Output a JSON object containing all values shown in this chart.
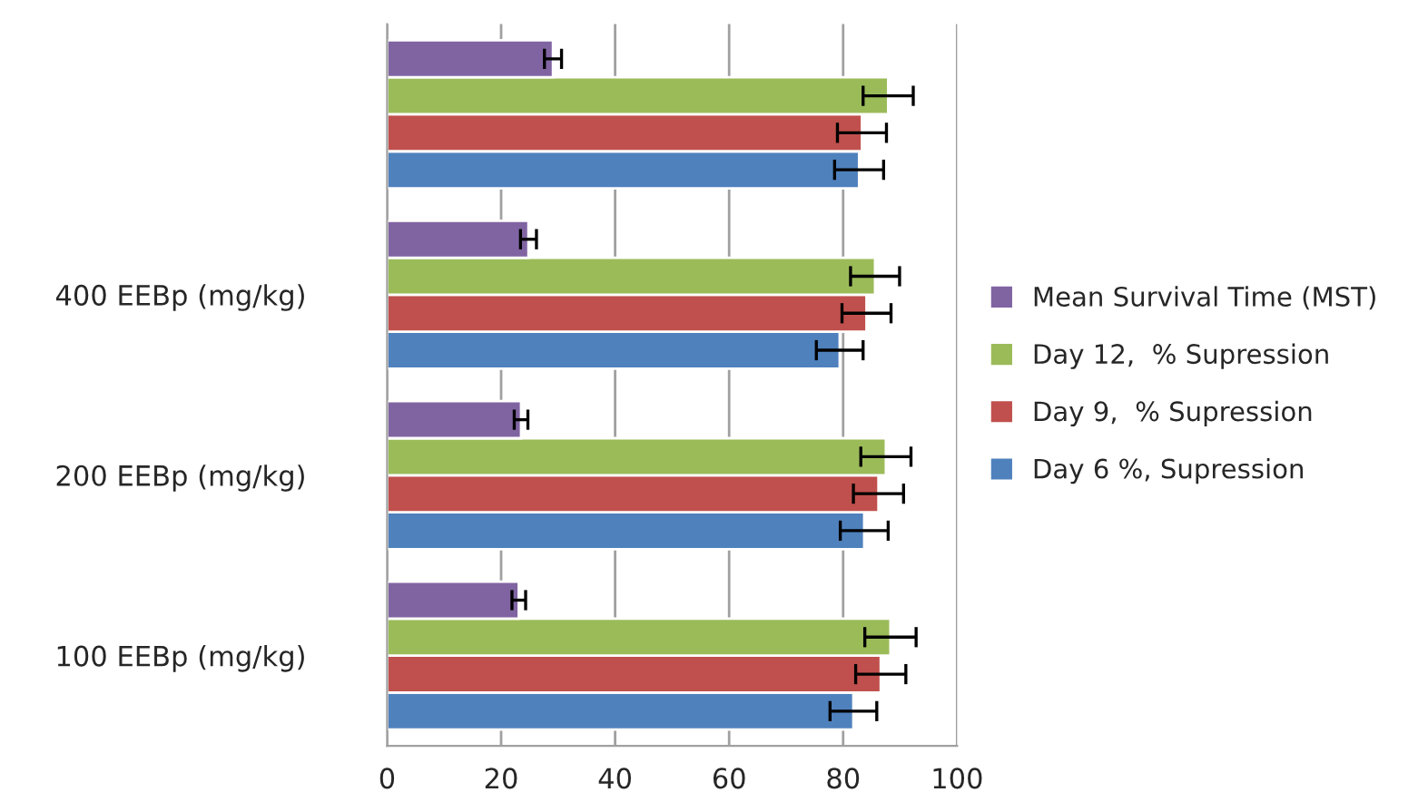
{
  "chart_data": {
    "type": "bar",
    "orientation": "horizontal",
    "categories": [
      null,
      "400 EEBp (mg/kg)",
      "200 EEBp (mg/kg)",
      "100 EEBp (mg/kg)"
    ],
    "series": [
      {
        "name": "Day 6 %, Supression",
        "color": "#4f81bd",
        "values": [
          82.8,
          79.4,
          83.7,
          81.8
        ],
        "errors": [
          4.3,
          4.1,
          4.2,
          4.1
        ]
      },
      {
        "name": "Day 9,  % Supression",
        "color": "#c0504d",
        "values": [
          83.3,
          84.1,
          86.2,
          86.6
        ],
        "errors": [
          4.3,
          4.3,
          4.4,
          4.4
        ]
      },
      {
        "name": "Day 12,  % Supression",
        "color": "#9bbb59",
        "values": [
          87.9,
          85.6,
          87.5,
          88.3
        ],
        "errors": [
          4.4,
          4.3,
          4.4,
          4.5
        ]
      },
      {
        "name": "Mean Survival Time (MST)",
        "color": "#8064a2",
        "values": [
          29.1,
          24.8,
          23.5,
          23.1
        ],
        "errors": [
          1.5,
          1.4,
          1.2,
          1.2
        ]
      }
    ],
    "xlim": [
      0,
      100
    ],
    "xticks": [
      0,
      20,
      40,
      60,
      80,
      100
    ],
    "grid": "x",
    "legend": "right"
  }
}
